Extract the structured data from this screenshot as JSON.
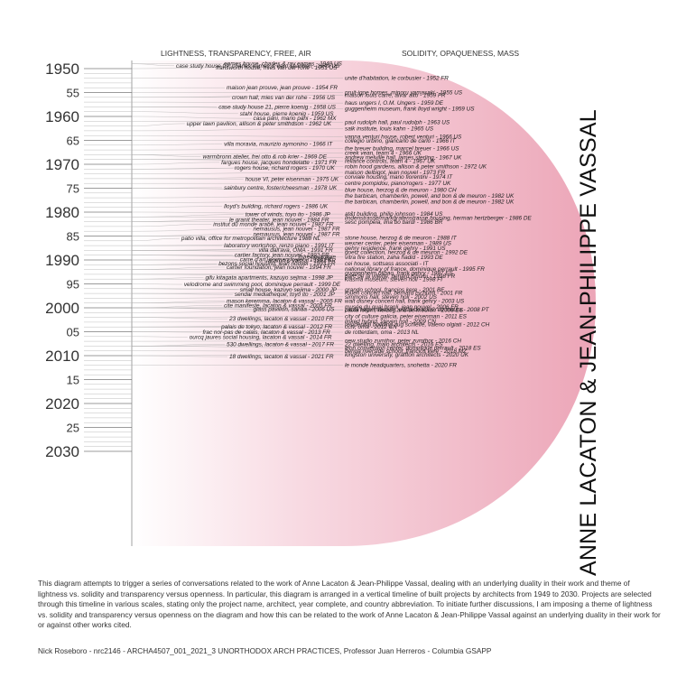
{
  "headers": {
    "left": "LIGHTNESS, TRANSPARENCY, FREE, AIR",
    "right": "SOLIDITY, OPAQUENESS, MASS"
  },
  "side_title": "ANNE LACATON & JEAN-PHILIPPE VASSAL",
  "year_labels": [
    {
      "year": 1950,
      "label": "1950",
      "major": true
    },
    {
      "year": 1955,
      "label": "55",
      "major": false
    },
    {
      "year": 1960,
      "label": "1960",
      "major": true
    },
    {
      "year": 1965,
      "label": "65",
      "major": false
    },
    {
      "year": 1970,
      "label": "1970",
      "major": true
    },
    {
      "year": 1975,
      "label": "75",
      "major": false
    },
    {
      "year": 1980,
      "label": "1980",
      "major": true
    },
    {
      "year": 1985,
      "label": "85",
      "major": false
    },
    {
      "year": 1990,
      "label": "1990",
      "major": true
    },
    {
      "year": 1995,
      "label": "95",
      "major": false
    },
    {
      "year": 2000,
      "label": "2000",
      "major": true
    },
    {
      "year": 2005,
      "label": "05",
      "major": false
    },
    {
      "year": 2010,
      "label": "2010",
      "major": true
    },
    {
      "year": 2015,
      "label": "15",
      "major": false
    },
    {
      "year": 2020,
      "label": "2020",
      "major": true
    },
    {
      "year": 2025,
      "label": "25",
      "major": false
    },
    {
      "year": 2030,
      "label": "2030",
      "major": true
    }
  ],
  "projects": [
    {
      "year": 1949,
      "side": "L",
      "text": "eames house, charles & ray eames - 1949 US"
    },
    {
      "year": 1949.4,
      "side": "L",
      "text": "case study house 09, charles eames & eero saarinen - 1949 US"
    },
    {
      "year": 1949.8,
      "side": "L",
      "text": "fransworth house, mies van der rohe - 1951 US"
    },
    {
      "year": 1952,
      "side": "R",
      "text": "unite d'habitation, le corbusier - 1952 FR"
    },
    {
      "year": 1954,
      "side": "L",
      "text": "maison jean prouve, jean prouve - 1954 FR"
    },
    {
      "year": 1955,
      "side": "R",
      "text": "pruit-igoe homes, minoru yamasaki - 1955 US"
    },
    {
      "year": 1955.6,
      "side": "R",
      "text": "maison louis carré, alvar alto - 1959 FR"
    },
    {
      "year": 1956,
      "side": "L",
      "text": "crown hall, mies van der rohe - 1956 US"
    },
    {
      "year": 1957.2,
      "side": "R",
      "text": "haus ungers I, O.M. Ungers - 1959 DE"
    },
    {
      "year": 1958,
      "side": "L",
      "text": "case study house 21, pierre koenig - 1958 US"
    },
    {
      "year": 1958.4,
      "side": "R",
      "text": "guggenheim museum, frank lloyd wright - 1959 US"
    },
    {
      "year": 1959.4,
      "side": "L",
      "text": "stahl house, pierre koenig - 1959 US"
    },
    {
      "year": 1960.4,
      "side": "L",
      "text": "casa pani, mario pani - 1962 MX"
    },
    {
      "year": 1961.2,
      "side": "R",
      "text": "paul rudolph hall, paul rudolph - 1963 US"
    },
    {
      "year": 1961.5,
      "side": "L",
      "text": "upper lawn pavilion, allison & peter smithdson - 1962 UK"
    },
    {
      "year": 1962.5,
      "side": "R",
      "text": "salk institute, louis kahn - 1965 US"
    },
    {
      "year": 1964.2,
      "side": "R",
      "text": "vanna venturi house, robert venturi - 1966 US"
    },
    {
      "year": 1965.1,
      "side": "R",
      "text": "collegio urbino, giancarlo de carlo - 1966 IT"
    },
    {
      "year": 1965.8,
      "side": "L",
      "text": "villa moravia, maurizio aymonino - 1966 IT"
    },
    {
      "year": 1966.7,
      "side": "R",
      "text": "the breuer building, marcel breuer - 1966 US"
    },
    {
      "year": 1967.6,
      "side": "R",
      "text": "creek vean, team 4 - 1966 UK"
    },
    {
      "year": 1968.4,
      "side": "L",
      "text": "warmbronn atelier, frei otto & rob krier - 1969 DE"
    },
    {
      "year": 1968.6,
      "side": "R",
      "text": "andrew melville hall, james sterling - 1967 UK"
    },
    {
      "year": 1969.3,
      "side": "R",
      "text": "reliance controls, team 4 - 1967 UK"
    },
    {
      "year": 1969.6,
      "side": "L",
      "text": "fargues house, jacques hondelatte - 1971 FR"
    },
    {
      "year": 1970.5,
      "side": "R",
      "text": "robin hood gardens, allison & peter smithson - 1972 UK"
    },
    {
      "year": 1970.8,
      "side": "L",
      "text": "rogers house, richard rogers - 1970 UK"
    },
    {
      "year": 1971.7,
      "side": "R",
      "text": "maison delbigot, jean nouvel - 1973 FR"
    },
    {
      "year": 1972.6,
      "side": "R",
      "text": "corviale housing, mario fiorentini - 1974 IT"
    },
    {
      "year": 1973.1,
      "side": "L",
      "text": "house VI, peter eisenman - 1975 UK"
    },
    {
      "year": 1974,
      "side": "R",
      "text": "centre pompidou, piano/rogers - 1977 UK"
    },
    {
      "year": 1974.9,
      "side": "L",
      "text": "sainbury centre, foster/cheesman - 1978 UK"
    },
    {
      "year": 1975.4,
      "side": "R",
      "text": "blue house, herzog & de meuron - 1980 CH"
    },
    {
      "year": 1976.6,
      "side": "R",
      "text": "the barbican, chamberlin, powell, and bon & de meuron - 1982 UK"
    },
    {
      "year": 1977.8,
      "side": "R",
      "text": "the barbican, chamberlin, powell, and bon & de meuron - 1982 UK"
    },
    {
      "year": 1978.8,
      "side": "L",
      "text": "lloyd's building, richard rogers - 1986 UK"
    },
    {
      "year": 1980.4,
      "side": "R",
      "text": "at&t building, philip johnson - 1984 US"
    },
    {
      "year": 1980.5,
      "side": "L",
      "text": "tower of winds, toyo ito - 1986 JP"
    },
    {
      "year": 1981.2,
      "side": "R",
      "text": "lindenstrasse/markgrafenstrasse housing, herman hertzberger - 1986 DE"
    },
    {
      "year": 1981.6,
      "side": "L",
      "text": "le granit theater, jean nouvel - 1984 FR"
    },
    {
      "year": 1982.1,
      "side": "R",
      "text": "sesc pompéia, lina bo bardi - 1986 BR"
    },
    {
      "year": 1982.5,
      "side": "L",
      "text": "institut du monde arabe, jean nouvel - 1987 FR"
    },
    {
      "year": 1983.5,
      "side": "L",
      "text": "nemausus, jean nouvel - 1987 FR"
    },
    {
      "year": 1984.6,
      "side": "L",
      "text": "nemausus, jean nouvel - 1987 FR"
    },
    {
      "year": 1985.5,
      "side": "L",
      "text": "patio villa, office for metropolitain architecture 1988 NL"
    },
    {
      "year": 1985.4,
      "side": "R",
      "text": "stone house, herzog & de meuron - 1988 IT"
    },
    {
      "year": 1986.5,
      "side": "R",
      "text": "wexner center, peter eisenman - 1989 US"
    },
    {
      "year": 1987,
      "side": "L",
      "text": "laboratory workshop, renzo piano - 1991 IT"
    },
    {
      "year": 1987.5,
      "side": "R",
      "text": "gehry residence, frank gehry - 1991 US"
    },
    {
      "year": 1987.9,
      "side": "L",
      "text": "villa dall'ava, OMA - 1991 FR"
    },
    {
      "year": 1988.4,
      "side": "R",
      "text": "goetz collection, herzog & de meuron - 1992 DE"
    },
    {
      "year": 1989,
      "side": "L",
      "text": "cartier factory, jean nouvel - 1992 FR"
    },
    {
      "year": 1989.4,
      "side": "R",
      "text": "vitra fire station, zaha hadid - 1993 DE"
    },
    {
      "year": 1989.3,
      "side": "L",
      "text": "maison latapie"
    },
    {
      "year": 1990.1,
      "side": "L",
      "text": "lacaton & vassal - 1993 FR"
    },
    {
      "year": 1989.9,
      "side": "L",
      "text": "carre d'art, norman foster - 1993 FR"
    },
    {
      "year": 1990.8,
      "side": "L",
      "text": "bezons social housing, jean nouvel - 1993 FR"
    },
    {
      "year": 1990.8,
      "side": "R",
      "text": "cei house, sottsass associati - IT"
    },
    {
      "year": 1991.5,
      "side": "L",
      "text": "cartier foundation, jean nouvel - 1994 FR"
    },
    {
      "year": 1991.9,
      "side": "R",
      "text": "national library of france, dominique perrault - 1995 FR"
    },
    {
      "year": 1992.7,
      "side": "R",
      "text": "guggenheim bilbao, frank gehry - 1997 ES"
    },
    {
      "year": 1993.4,
      "side": "R",
      "text": "parc de la villette, benard tshumi - 1998 FR"
    },
    {
      "year": 1993.7,
      "side": "L",
      "text": "gifu kitagata apartments, kazuyo sejima - 1998 JP"
    },
    {
      "year": 1994.1,
      "side": "R",
      "text": "kiasma museum, steven holl - 1998 FI"
    },
    {
      "year": 1995.1,
      "side": "L",
      "text": "velodrome and swimming pool, dominique perrault - 1999 DE"
    },
    {
      "year": 1996.2,
      "side": "L",
      "text": "small house, kazuyo sejima - 2000 JP"
    },
    {
      "year": 1996.2,
      "side": "R",
      "text": "grando school, francios kere - 2001 BF"
    },
    {
      "year": 1996.9,
      "side": "R",
      "text": "rouen concert hall, bernard tschumi - 2001 FR"
    },
    {
      "year": 1997.2,
      "side": "L",
      "text": "sendai mediatheque, toyo ito - 2001 JP"
    },
    {
      "year": 1997.7,
      "side": "R",
      "text": "simmons hall, steven holl - 2002 US"
    },
    {
      "year": 1998.6,
      "side": "L",
      "text": "mason keremma, lacaton & vassal - 2005 FR"
    },
    {
      "year": 1998.6,
      "side": "R",
      "text": "walt disney concert hall, frank gehry - 2003 US"
    },
    {
      "year": 1999.5,
      "side": "L",
      "text": "cite manifeste, lacaton & vassal - 2005 FR"
    },
    {
      "year": 1999.8,
      "side": "R",
      "text": "musée du quai branli, jean nouvel - 2006 FR"
    },
    {
      "year": 2000.3,
      "side": "L",
      "text": "glass pavilion, sanaa - 2006 US"
    },
    {
      "year": 2000.5,
      "side": "R",
      "text": "caixa forum, herzog and de meuron - 2008 ES"
    },
    {
      "year": 2000.4,
      "side": "R",
      "text": "paula rego museum, eduardo souto de moura - 2008 PT"
    },
    {
      "year": 2001.8,
      "side": "R",
      "text": "city of culture galicia, peter eisenman - 2011 ES"
    },
    {
      "year": 2002.3,
      "side": "L",
      "text": "23 dwellings, lacaton & vassal - 2010 FR"
    },
    {
      "year": 2002.8,
      "side": "R",
      "text": "linked hybrid, steven holl - 2009 CN"
    },
    {
      "year": 2003.5,
      "side": "R",
      "text": "residential building zug schleife, valerio olgiati - 2012 CH"
    },
    {
      "year": 2004,
      "side": "R",
      "text": "cctv, oma - 2012 CN"
    },
    {
      "year": 2004,
      "side": "L",
      "text": "palais de tokyo, lacaton & vassal - 2012 FR"
    },
    {
      "year": 2005.1,
      "side": "L",
      "text": "frac nor-pas de calais, lacaton & vassal - 2013 FR"
    },
    {
      "year": 2005.1,
      "side": "R",
      "text": "de rotterdam, oma - 2013 NL"
    },
    {
      "year": 2006.1,
      "side": "L",
      "text": "ourcq jaures social housing, lacaton & vassal - 2014 FR"
    },
    {
      "year": 2006.9,
      "side": "R",
      "text": "new studio zumthor, peter zumthor - 2016 CH"
    },
    {
      "year": 2007.6,
      "side": "L",
      "text": "530 dwellings, lacaton & vassal - 2017 FR"
    },
    {
      "year": 2007.6,
      "side": "R",
      "text": "22 dwelling, maio architects - 2016 ES"
    },
    {
      "year": 2008.4,
      "side": "R",
      "text": "leon convention center, dominique perrault - 2018 ES"
    },
    {
      "year": 2009.1,
      "side": "R",
      "text": "benga riverside school, francios kere - 2018 MZ"
    },
    {
      "year": 2009.8,
      "side": "R",
      "text": "kingston university, graffton architects - 2020 UK"
    },
    {
      "year": 2010.2,
      "side": "L",
      "text": "18 dwellings, lacaton & vassal - 2021 FR"
    },
    {
      "year": 2012,
      "side": "R",
      "text": "le monde headquarters, snohetta - 2020 FR"
    }
  ],
  "description": "This diagram attempts to trigger a series of conversations related to the work of Anne Lacaton & Jean-Philippe Vassal, dealing with an underlying duality in their work and theme of lightness vs. solidity and transparency versus openness. In particular, this diagram is arranged in a vertical timeline of built projects by architects from 1949 to 2030. Projects are selected through this timeline in various scales, stating only the project name, architect, year complete, and country abbreviation. To initiate further discussions, I am imposing a theme of lightness vs. solidity and transparency versus openness on the diagram and how this can be related to the work of Anne Lacaton & Jean-Philippe Vassal against an underlying duality in their work for or against other works cited.",
  "credits": "Nick Roseboro - nrc2146 - ARCHA4507_001_2021_3  UNORTHODOX ARCH PRACTICES, Professor Juan Herreros - Columbia GSAPP",
  "colors": {
    "shape_fill": "#f2b5c4",
    "line": "#9a9a9a",
    "text": "#222222"
  }
}
